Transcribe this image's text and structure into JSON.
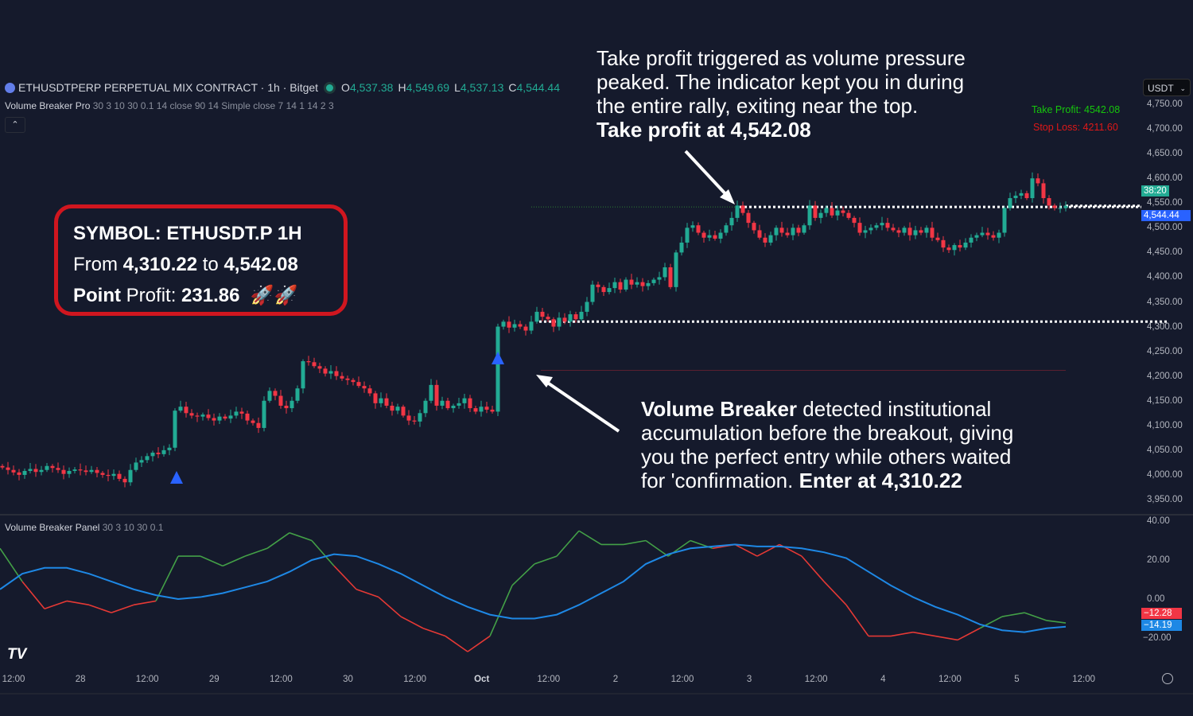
{
  "header": {
    "symbol_title": "ETHUSDTPERP PERPETUAL MIX CONTRACT · 1h · Bitget",
    "ohlc": [
      {
        "k": "O",
        "v": "4,537.38"
      },
      {
        "k": "H",
        "v": "4,549.69"
      },
      {
        "k": "L",
        "v": "4,537.13"
      },
      {
        "k": "C",
        "v": "4,544.44"
      }
    ],
    "indicator_name": "Volume Breaker Pro",
    "indicator_params": "30 3 10 30 0.1 14 close 90 14 Simple close 7 14 1 14 2 3",
    "collapse_icon": "chevron-up-icon",
    "currency": "USDT"
  },
  "summary_box": {
    "line1": "SYMBOL: ETHUSDT.P 1H",
    "from_label": "From",
    "from_value": "4,310.22",
    "to_label": "to",
    "to_value": "4,542.08",
    "point_label": "Point",
    "profit_label": "Profit:",
    "profit_value": "231.86",
    "emoji": "🚀🚀"
  },
  "annotations": {
    "top_text": [
      "Take profit triggered as volume pressure",
      "peaked. The indicator kept you in during",
      "the entire rally, exiting near the top."
    ],
    "top_bold": "Take profit at 4,542.08",
    "bottom_bold1": "Volume Breaker",
    "bottom_text1": " detected institutional",
    "bottom_text": [
      "accumulation before the breakout, giving",
      "you the perfect entry while others waited"
    ],
    "bottom_last": "for 'confirmation. ",
    "bottom_bold2": "Enter at 4,310.22"
  },
  "labels": {
    "take_profit": "Take Profit: 4542.08",
    "stop_loss": "Stop Loss: 4211.60",
    "countdown": "38:20",
    "last_price": "4,544.44",
    "fast_value": "−12.28",
    "slow_value": "−14.19"
  },
  "colors": {
    "up": "#22ab94",
    "down": "#f23645",
    "background": "#151a2c",
    "fast_above": "#43a047",
    "fast_below": "#e53935",
    "slow": "#1e88e5",
    "entry_marker": "#2962ff"
  },
  "chart_data": [
    {
      "type": "candlestick",
      "title": "",
      "y_ticks": [
        "4,750.00",
        "4,700.00",
        "4,650.00",
        "4,600.00",
        "4,550.00",
        "4,500.00",
        "4,450.00",
        "4,400.00",
        "4,350.00",
        "4,300.00",
        "4,250.00",
        "4,200.00",
        "4,150.00",
        "4,100.00",
        "4,050.00",
        "4,000.00",
        "3,950.00"
      ],
      "ylim": [
        3950,
        4750
      ],
      "x_ticks": [
        "12:00",
        "28",
        "12:00",
        "29",
        "12:00",
        "30",
        "12:00",
        "Oct",
        "12:00",
        "2",
        "12:00",
        "3",
        "12:00",
        "4",
        "12:00",
        "5",
        "12:00"
      ],
      "closes": [
        4015,
        4010,
        4005,
        4000,
        4008,
        4012,
        4006,
        4010,
        4018,
        4014,
        4010,
        4002,
        4008,
        4011,
        4009,
        4006,
        4010,
        4004,
        4000,
        3998,
        4002,
        3992,
        3985,
        4010,
        4025,
        4030,
        4038,
        4045,
        4042,
        4050,
        4055,
        4130,
        4138,
        4125,
        4120,
        4118,
        4122,
        4115,
        4110,
        4118,
        4114,
        4120,
        4128,
        4124,
        4110,
        4105,
        4095,
        4150,
        4170,
        4160,
        4140,
        4135,
        4150,
        4175,
        4230,
        4228,
        4220,
        4215,
        4205,
        4210,
        4200,
        4195,
        4192,
        4188,
        4180,
        4175,
        4165,
        4145,
        4155,
        4140,
        4130,
        4138,
        4120,
        4110,
        4108,
        4125,
        4150,
        4182,
        4140,
        4150,
        4135,
        4140,
        4145,
        4155,
        4135,
        4128,
        4138,
        4132,
        4128,
        4300,
        4310,
        4298,
        4305,
        4300,
        4292,
        4310,
        4330,
        4320,
        4315,
        4300,
        4318,
        4310,
        4325,
        4315,
        4330,
        4350,
        4385,
        4380,
        4370,
        4378,
        4390,
        4375,
        4395,
        4385,
        4390,
        4382,
        4388,
        4395,
        4400,
        4420,
        4380,
        4450,
        4470,
        4500,
        4505,
        4490,
        4480,
        4485,
        4478,
        4490,
        4505,
        4520,
        4545,
        4530,
        4510,
        4495,
        4480,
        4470,
        4485,
        4500,
        4490,
        4485,
        4500,
        4490,
        4505,
        4545,
        4520,
        4530,
        4540,
        4525,
        4535,
        4530,
        4520,
        4510,
        4490,
        4495,
        4500,
        4505,
        4510,
        4500,
        4495,
        4490,
        4500,
        4485,
        4495,
        4490,
        4500,
        4480,
        4475,
        4460,
        4455,
        4465,
        4460,
        4470,
        4480,
        4485,
        4490,
        4485,
        4480,
        4490,
        4540,
        4560,
        4565,
        4570,
        4560,
        4600,
        4590,
        4560,
        4545,
        4540,
        4540,
        4544.44
      ],
      "take_profit": 4542.08,
      "entry": 4310.22,
      "stop_loss": 4211.6,
      "entry_signals_at_candle": [
        31,
        90
      ]
    },
    {
      "type": "line",
      "title": "Volume Breaker Panel",
      "params": "30 3 10 30 0.1",
      "y_ticks": [
        "40.00",
        "20.00",
        "0.00",
        "−20.00"
      ],
      "ylim": [
        -30,
        42
      ],
      "series": [
        {
          "values": [
            26,
            9,
            -5,
            -1,
            -3,
            -7,
            -3,
            -1,
            22,
            22,
            17,
            22,
            26,
            34,
            30,
            17,
            5,
            1,
            -9,
            -15,
            -19,
            -27,
            -19,
            7,
            18,
            22,
            35,
            28,
            28,
            30,
            22,
            30,
            26,
            28,
            22,
            28,
            22,
            9,
            -3,
            -19,
            -19,
            -17,
            -19,
            -21,
            -15,
            -9,
            -7,
            -11,
            -12.28
          ]
        },
        {
          "values": [
            5,
            13,
            16,
            16,
            13,
            9,
            5,
            2,
            0,
            1,
            3,
            6,
            9,
            14,
            20,
            23,
            22,
            18,
            13,
            7,
            1,
            -4,
            -8,
            -10,
            -10,
            -8,
            -3,
            3,
            9,
            18,
            23,
            26,
            27,
            28,
            27,
            27,
            26,
            24,
            21,
            14,
            7,
            1,
            -4,
            -8,
            -13,
            -16,
            -17,
            -15,
            -14.19
          ]
        }
      ]
    }
  ]
}
